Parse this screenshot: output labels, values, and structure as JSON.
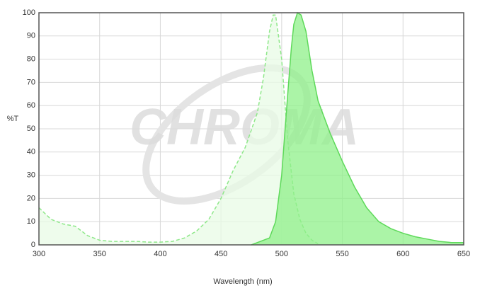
{
  "chart_data": {
    "type": "area",
    "watermark": "CHROMA",
    "xlabel": "Wavelength (nm)",
    "ylabel": "%T",
    "xlim": [
      300,
      650
    ],
    "xticks": [
      300,
      350,
      400,
      450,
      500,
      550,
      600,
      650
    ],
    "ylim": [
      0,
      100
    ],
    "yticks": [
      0,
      10,
      20,
      30,
      40,
      50,
      60,
      70,
      80,
      90,
      100
    ],
    "grid": true,
    "series": [
      {
        "color": "#8fe88a",
        "fill": "#e8fbe6",
        "line_style": "dashed",
        "x": [
          300,
          310,
          320,
          330,
          340,
          350,
          360,
          370,
          380,
          390,
          400,
          410,
          420,
          430,
          440,
          450,
          460,
          470,
          480,
          485,
          490,
          493,
          495,
          500,
          505,
          510,
          515,
          520,
          525,
          530
        ],
        "values": [
          16,
          11,
          9,
          8,
          4,
          2,
          1.5,
          1.5,
          1.5,
          1.2,
          1.2,
          1.5,
          3,
          6,
          11,
          20,
          32,
          42,
          57,
          72,
          92,
          99,
          99,
          80,
          45,
          22,
          11,
          5,
          2,
          0.5
        ]
      },
      {
        "color": "#5ed95a",
        "fill": "#8ff08a",
        "line_style": "solid",
        "x": [
          475,
          480,
          490,
          495,
          500,
          505,
          508,
          510,
          513,
          516,
          520,
          525,
          530,
          540,
          550,
          560,
          570,
          580,
          590,
          600,
          610,
          620,
          630,
          640,
          650
        ],
        "values": [
          0,
          1,
          3,
          10,
          30,
          65,
          85,
          95,
          100,
          99,
          92,
          75,
          62,
          48,
          36,
          25,
          16,
          10,
          7,
          5,
          3.5,
          2.5,
          1.5,
          1,
          1
        ]
      }
    ]
  }
}
